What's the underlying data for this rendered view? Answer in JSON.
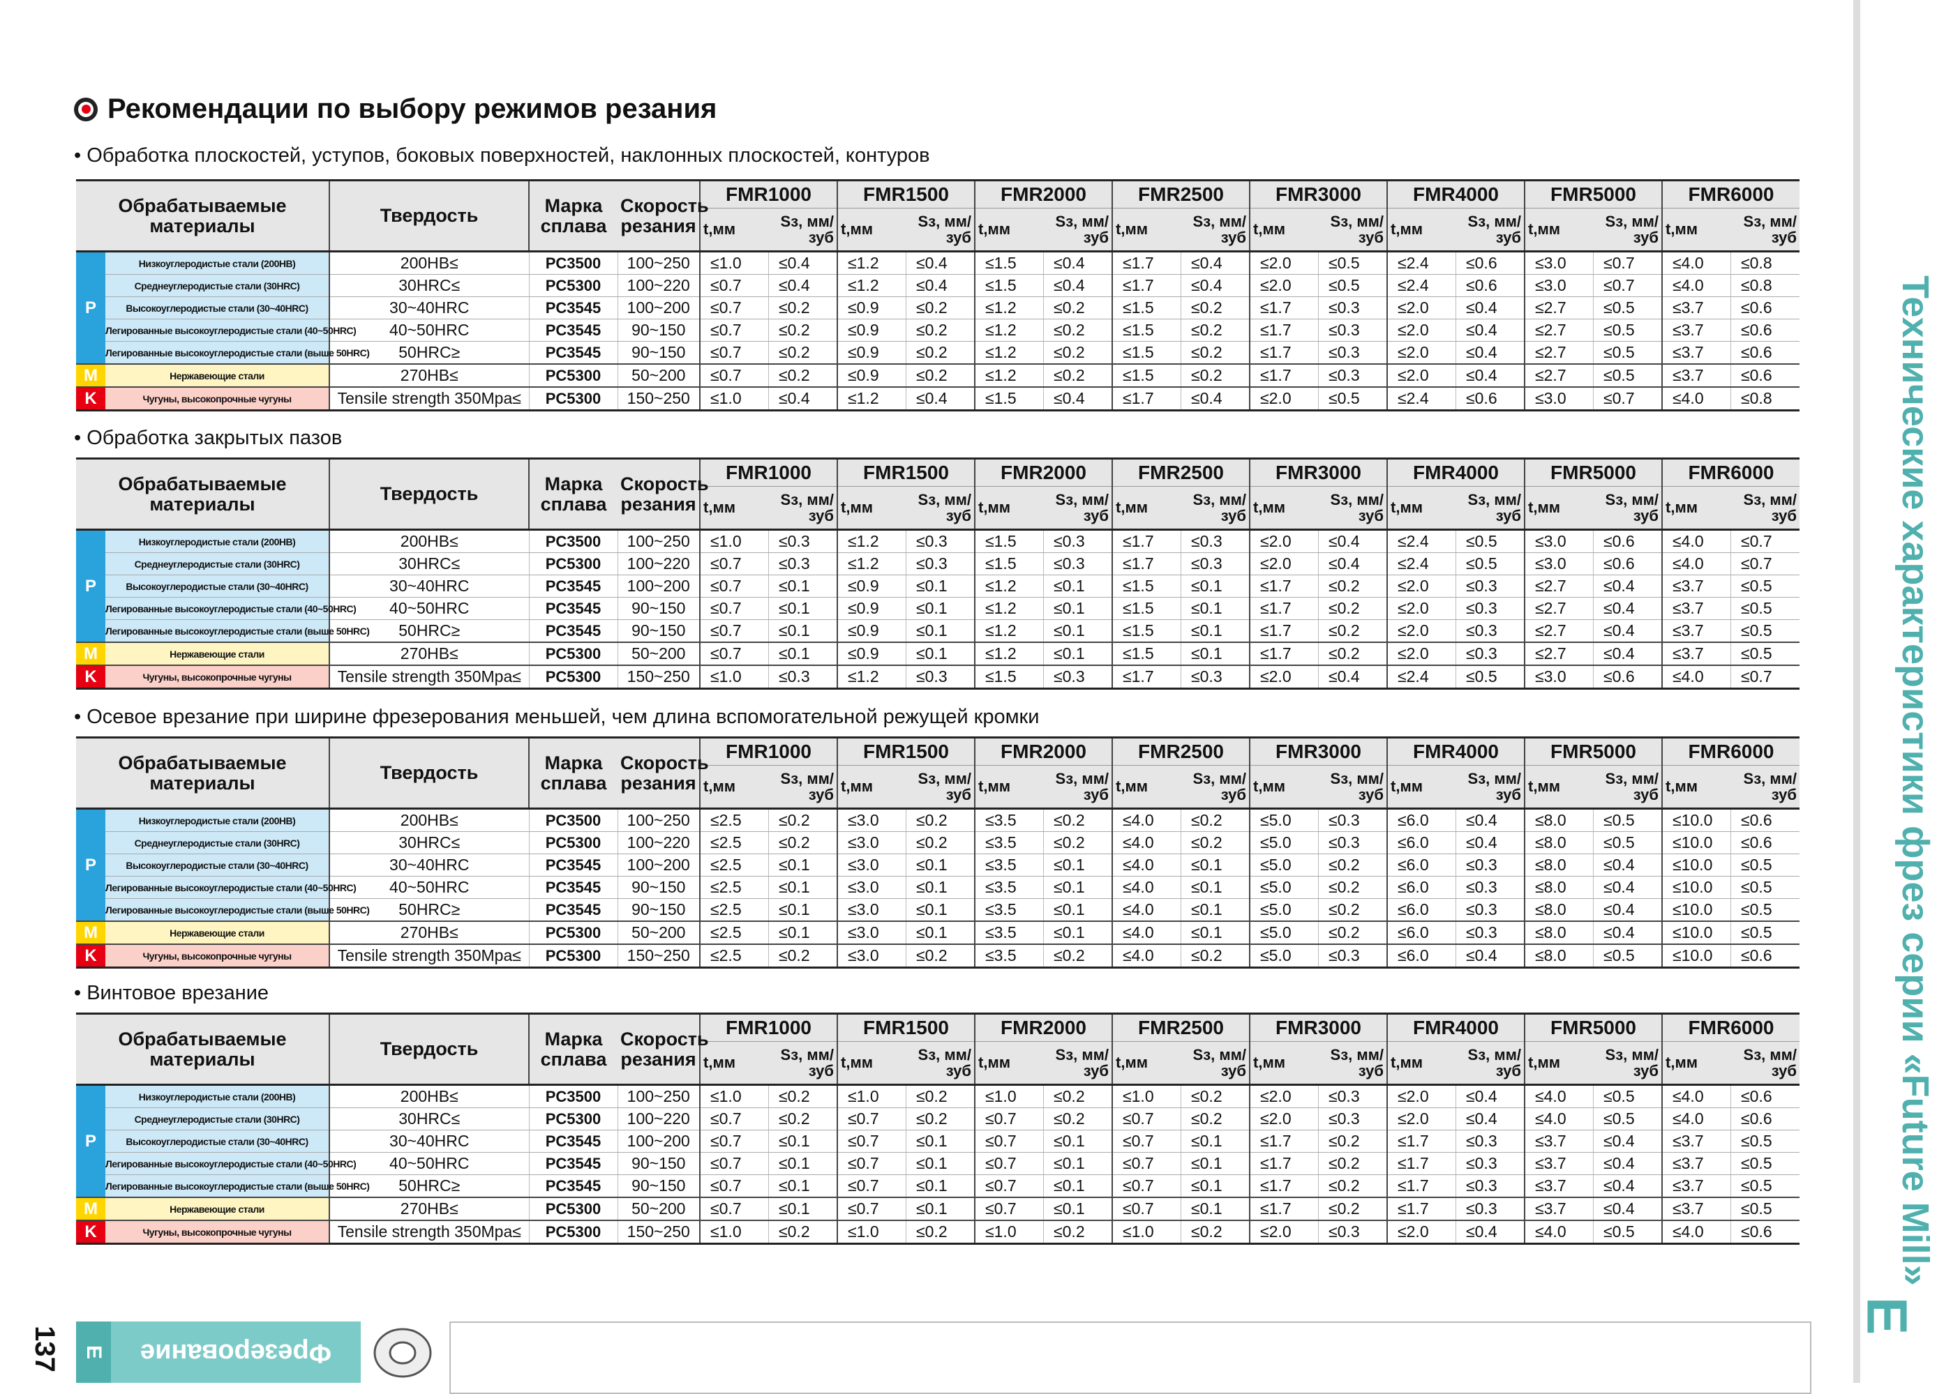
{
  "title": "Рекомендации по выбору режимов резания",
  "header": {
    "materials": "Обрабатываемые материалы",
    "hardness": "Твердость",
    "grade": "Марка сплава",
    "speed": "Скорость резания",
    "models": [
      "FMR1000",
      "FMR1500",
      "FMR2000",
      "FMR2500",
      "FMR3000",
      "FMR4000",
      "FMR5000",
      "FMR6000"
    ],
    "t": "t,мм",
    "s": "Sз, мм/зуб"
  },
  "tables": [
    {
      "caption": "• Обработка плоскостей, уступов, боковых поверхностей, наклонных плоскостей, контуров",
      "groups": [
        {
          "label": "P",
          "rows": [
            [
              "Низкоуглеродистые стали (200HB)",
              "200HB≤",
              "PC3500",
              "100~250",
              "≤1.0",
              "≤0.4",
              "≤1.2",
              "≤0.4",
              "≤1.5",
              "≤0.4",
              "≤1.7",
              "≤0.4",
              "≤2.0",
              "≤0.5",
              "≤2.4",
              "≤0.6",
              "≤3.0",
              "≤0.7",
              "≤4.0",
              "≤0.8"
            ],
            [
              "Среднеуглеродистые стали (30HRC)",
              "30HRC≤",
              "PC5300",
              "100~220",
              "≤0.7",
              "≤0.4",
              "≤1.2",
              "≤0.4",
              "≤1.5",
              "≤0.4",
              "≤1.7",
              "≤0.4",
              "≤2.0",
              "≤0.5",
              "≤2.4",
              "≤0.6",
              "≤3.0",
              "≤0.7",
              "≤4.0",
              "≤0.8"
            ],
            [
              "Высокоуглеродистые стали (30~40HRC)",
              "30~40HRC",
              "PC3545",
              "100~200",
              "≤0.7",
              "≤0.2",
              "≤0.9",
              "≤0.2",
              "≤1.2",
              "≤0.2",
              "≤1.5",
              "≤0.2",
              "≤1.7",
              "≤0.3",
              "≤2.0",
              "≤0.4",
              "≤2.7",
              "≤0.5",
              "≤3.7",
              "≤0.6"
            ],
            [
              "Легированные высокоуглеродистые стали (40~50HRC)",
              "40~50HRC",
              "PC3545",
              "90~150",
              "≤0.7",
              "≤0.2",
              "≤0.9",
              "≤0.2",
              "≤1.2",
              "≤0.2",
              "≤1.5",
              "≤0.2",
              "≤1.7",
              "≤0.3",
              "≤2.0",
              "≤0.4",
              "≤2.7",
              "≤0.5",
              "≤3.7",
              "≤0.6"
            ],
            [
              "Легированные высокоуглеродистые стали (выше 50HRC)",
              "50HRC≥",
              "PC3545",
              "90~150",
              "≤0.7",
              "≤0.2",
              "≤0.9",
              "≤0.2",
              "≤1.2",
              "≤0.2",
              "≤1.5",
              "≤0.2",
              "≤1.7",
              "≤0.3",
              "≤2.0",
              "≤0.4",
              "≤2.7",
              "≤0.5",
              "≤3.7",
              "≤0.6"
            ]
          ]
        },
        {
          "label": "M",
          "rows": [
            [
              "Нержавеющие стали",
              "270HB≤",
              "PC5300",
              "50~200",
              "≤0.7",
              "≤0.2",
              "≤0.9",
              "≤0.2",
              "≤1.2",
              "≤0.2",
              "≤1.5",
              "≤0.2",
              "≤1.7",
              "≤0.3",
              "≤2.0",
              "≤0.4",
              "≤2.7",
              "≤0.5",
              "≤3.7",
              "≤0.6"
            ]
          ]
        },
        {
          "label": "K",
          "rows": [
            [
              "Чугуны, высокопрочные чугуны",
              "Tensile strength 350Mpa≤",
              "PC5300",
              "150~250",
              "≤1.0",
              "≤0.4",
              "≤1.2",
              "≤0.4",
              "≤1.5",
              "≤0.4",
              "≤1.7",
              "≤0.4",
              "≤2.0",
              "≤0.5",
              "≤2.4",
              "≤0.6",
              "≤3.0",
              "≤0.7",
              "≤4.0",
              "≤0.8"
            ]
          ]
        }
      ]
    },
    {
      "caption": "• Обработка закрытых пазов",
      "groups": [
        {
          "label": "P",
          "rows": [
            [
              "Низкоуглеродистые стали (200HB)",
              "200HB≤",
              "PC3500",
              "100~250",
              "≤1.0",
              "≤0.3",
              "≤1.2",
              "≤0.3",
              "≤1.5",
              "≤0.3",
              "≤1.7",
              "≤0.3",
              "≤2.0",
              "≤0.4",
              "≤2.4",
              "≤0.5",
              "≤3.0",
              "≤0.6",
              "≤4.0",
              "≤0.7"
            ],
            [
              "Среднеуглеродистые стали (30HRC)",
              "30HRC≤",
              "PC5300",
              "100~220",
              "≤0.7",
              "≤0.3",
              "≤1.2",
              "≤0.3",
              "≤1.5",
              "≤0.3",
              "≤1.7",
              "≤0.3",
              "≤2.0",
              "≤0.4",
              "≤2.4",
              "≤0.5",
              "≤3.0",
              "≤0.6",
              "≤4.0",
              "≤0.7"
            ],
            [
              "Высокоуглеродистые стали (30~40HRC)",
              "30~40HRC",
              "PC3545",
              "100~200",
              "≤0.7",
              "≤0.1",
              "≤0.9",
              "≤0.1",
              "≤1.2",
              "≤0.1",
              "≤1.5",
              "≤0.1",
              "≤1.7",
              "≤0.2",
              "≤2.0",
              "≤0.3",
              "≤2.7",
              "≤0.4",
              "≤3.7",
              "≤0.5"
            ],
            [
              "Легированные высокоуглеродистые стали (40~50HRC)",
              "40~50HRC",
              "PC3545",
              "90~150",
              "≤0.7",
              "≤0.1",
              "≤0.9",
              "≤0.1",
              "≤1.2",
              "≤0.1",
              "≤1.5",
              "≤0.1",
              "≤1.7",
              "≤0.2",
              "≤2.0",
              "≤0.3",
              "≤2.7",
              "≤0.4",
              "≤3.7",
              "≤0.5"
            ],
            [
              "Легированные высокоуглеродистые стали (выше 50HRC)",
              "50HRC≥",
              "PC3545",
              "90~150",
              "≤0.7",
              "≤0.1",
              "≤0.9",
              "≤0.1",
              "≤1.2",
              "≤0.1",
              "≤1.5",
              "≤0.1",
              "≤1.7",
              "≤0.2",
              "≤2.0",
              "≤0.3",
              "≤2.7",
              "≤0.4",
              "≤3.7",
              "≤0.5"
            ]
          ]
        },
        {
          "label": "M",
          "rows": [
            [
              "Нержавеющие стали",
              "270HB≤",
              "PC5300",
              "50~200",
              "≤0.7",
              "≤0.1",
              "≤0.9",
              "≤0.1",
              "≤1.2",
              "≤0.1",
              "≤1.5",
              "≤0.1",
              "≤1.7",
              "≤0.2",
              "≤2.0",
              "≤0.3",
              "≤2.7",
              "≤0.4",
              "≤3.7",
              "≤0.5"
            ]
          ]
        },
        {
          "label": "K",
          "rows": [
            [
              "Чугуны, высокопрочные чугуны",
              "Tensile strength 350Mpa≤",
              "PC5300",
              "150~250",
              "≤1.0",
              "≤0.3",
              "≤1.2",
              "≤0.3",
              "≤1.5",
              "≤0.3",
              "≤1.7",
              "≤0.3",
              "≤2.0",
              "≤0.4",
              "≤2.4",
              "≤0.5",
              "≤3.0",
              "≤0.6",
              "≤4.0",
              "≤0.7"
            ]
          ]
        }
      ]
    },
    {
      "caption": "• Осевое врезание при ширине фрезерования меньшей, чем длина вспомогательной режущей кромки",
      "groups": [
        {
          "label": "P",
          "rows": [
            [
              "Низкоуглеродистые стали (200HB)",
              "200HB≤",
              "PC3500",
              "100~250",
              "≤2.5",
              "≤0.2",
              "≤3.0",
              "≤0.2",
              "≤3.5",
              "≤0.2",
              "≤4.0",
              "≤0.2",
              "≤5.0",
              "≤0.3",
              "≤6.0",
              "≤0.4",
              "≤8.0",
              "≤0.5",
              "≤10.0",
              "≤0.6"
            ],
            [
              "Среднеуглеродистые стали (30HRC)",
              "30HRC≤",
              "PC5300",
              "100~220",
              "≤2.5",
              "≤0.2",
              "≤3.0",
              "≤0.2",
              "≤3.5",
              "≤0.2",
              "≤4.0",
              "≤0.2",
              "≤5.0",
              "≤0.3",
              "≤6.0",
              "≤0.4",
              "≤8.0",
              "≤0.5",
              "≤10.0",
              "≤0.6"
            ],
            [
              "Высокоуглеродистые стали (30~40HRC)",
              "30~40HRC",
              "PC3545",
              "100~200",
              "≤2.5",
              "≤0.1",
              "≤3.0",
              "≤0.1",
              "≤3.5",
              "≤0.1",
              "≤4.0",
              "≤0.1",
              "≤5.0",
              "≤0.2",
              "≤6.0",
              "≤0.3",
              "≤8.0",
              "≤0.4",
              "≤10.0",
              "≤0.5"
            ],
            [
              "Легированные высокоуглеродистые стали (40~50HRC)",
              "40~50HRC",
              "PC3545",
              "90~150",
              "≤2.5",
              "≤0.1",
              "≤3.0",
              "≤0.1",
              "≤3.5",
              "≤0.1",
              "≤4.0",
              "≤0.1",
              "≤5.0",
              "≤0.2",
              "≤6.0",
              "≤0.3",
              "≤8.0",
              "≤0.4",
              "≤10.0",
              "≤0.5"
            ],
            [
              "Легированные высокоуглеродистые стали (выше 50HRC)",
              "50HRC≥",
              "PC3545",
              "90~150",
              "≤2.5",
              "≤0.1",
              "≤3.0",
              "≤0.1",
              "≤3.5",
              "≤0.1",
              "≤4.0",
              "≤0.1",
              "≤5.0",
              "≤0.2",
              "≤6.0",
              "≤0.3",
              "≤8.0",
              "≤0.4",
              "≤10.0",
              "≤0.5"
            ]
          ]
        },
        {
          "label": "M",
          "rows": [
            [
              "Нержавеющие стали",
              "270HB≤",
              "PC5300",
              "50~200",
              "≤2.5",
              "≤0.1",
              "≤3.0",
              "≤0.1",
              "≤3.5",
              "≤0.1",
              "≤4.0",
              "≤0.1",
              "≤5.0",
              "≤0.2",
              "≤6.0",
              "≤0.3",
              "≤8.0",
              "≤0.4",
              "≤10.0",
              "≤0.5"
            ]
          ]
        },
        {
          "label": "K",
          "rows": [
            [
              "Чугуны, высокопрочные чугуны",
              "Tensile strength 350Mpa≤",
              "PC5300",
              "150~250",
              "≤2.5",
              "≤0.2",
              "≤3.0",
              "≤0.2",
              "≤3.5",
              "≤0.2",
              "≤4.0",
              "≤0.2",
              "≤5.0",
              "≤0.3",
              "≤6.0",
              "≤0.4",
              "≤8.0",
              "≤0.5",
              "≤10.0",
              "≤0.6"
            ]
          ]
        }
      ]
    },
    {
      "caption": "• Винтовое врезание",
      "groups": [
        {
          "label": "P",
          "rows": [
            [
              "Низкоуглеродистые стали (200HB)",
              "200HB≤",
              "PC3500",
              "100~250",
              "≤1.0",
              "≤0.2",
              "≤1.0",
              "≤0.2",
              "≤1.0",
              "≤0.2",
              "≤1.0",
              "≤0.2",
              "≤2.0",
              "≤0.3",
              "≤2.0",
              "≤0.4",
              "≤4.0",
              "≤0.5",
              "≤4.0",
              "≤0.6"
            ],
            [
              "Среднеуглеродистые стали (30HRC)",
              "30HRC≤",
              "PC5300",
              "100~220",
              "≤0.7",
              "≤0.2",
              "≤0.7",
              "≤0.2",
              "≤0.7",
              "≤0.2",
              "≤0.7",
              "≤0.2",
              "≤2.0",
              "≤0.3",
              "≤2.0",
              "≤0.4",
              "≤4.0",
              "≤0.5",
              "≤4.0",
              "≤0.6"
            ],
            [
              "Высокоуглеродистые стали (30~40HRC)",
              "30~40HRC",
              "PC3545",
              "100~200",
              "≤0.7",
              "≤0.1",
              "≤0.7",
              "≤0.1",
              "≤0.7",
              "≤0.1",
              "≤0.7",
              "≤0.1",
              "≤1.7",
              "≤0.2",
              "≤1.7",
              "≤0.3",
              "≤3.7",
              "≤0.4",
              "≤3.7",
              "≤0.5"
            ],
            [
              "Легированные высокоуглеродистые стали (40~50HRC)",
              "40~50HRC",
              "PC3545",
              "90~150",
              "≤0.7",
              "≤0.1",
              "≤0.7",
              "≤0.1",
              "≤0.7",
              "≤0.1",
              "≤0.7",
              "≤0.1",
              "≤1.7",
              "≤0.2",
              "≤1.7",
              "≤0.3",
              "≤3.7",
              "≤0.4",
              "≤3.7",
              "≤0.5"
            ],
            [
              "Легированные высокоуглеродистые стали (выше 50HRC)",
              "50HRC≥",
              "PC3545",
              "90~150",
              "≤0.7",
              "≤0.1",
              "≤0.7",
              "≤0.1",
              "≤0.7",
              "≤0.1",
              "≤0.7",
              "≤0.1",
              "≤1.7",
              "≤0.2",
              "≤1.7",
              "≤0.3",
              "≤3.7",
              "≤0.4",
              "≤3.7",
              "≤0.5"
            ]
          ]
        },
        {
          "label": "M",
          "rows": [
            [
              "Нержавеющие стали",
              "270HB≤",
              "PC5300",
              "50~200",
              "≤0.7",
              "≤0.1",
              "≤0.7",
              "≤0.1",
              "≤0.7",
              "≤0.1",
              "≤0.7",
              "≤0.1",
              "≤1.7",
              "≤0.2",
              "≤1.7",
              "≤0.3",
              "≤3.7",
              "≤0.4",
              "≤3.7",
              "≤0.5"
            ]
          ]
        },
        {
          "label": "K",
          "rows": [
            [
              "Чугуны, высокопрочные чугуны",
              "Tensile strength 350Mpa≤",
              "PC5300",
              "150~250",
              "≤1.0",
              "≤0.2",
              "≤1.0",
              "≤0.2",
              "≤1.0",
              "≤0.2",
              "≤1.0",
              "≤0.2",
              "≤2.0",
              "≤0.3",
              "≤2.0",
              "≤0.4",
              "≤4.0",
              "≤0.5",
              "≤4.0",
              "≤0.6"
            ]
          ]
        }
      ]
    }
  ],
  "side_title": "Технические характеристики фрез серии «Future Mill»",
  "side_letter": "E",
  "footer": {
    "page": "137",
    "tab_letter": "E",
    "tab_title": "Фрезерование"
  }
}
